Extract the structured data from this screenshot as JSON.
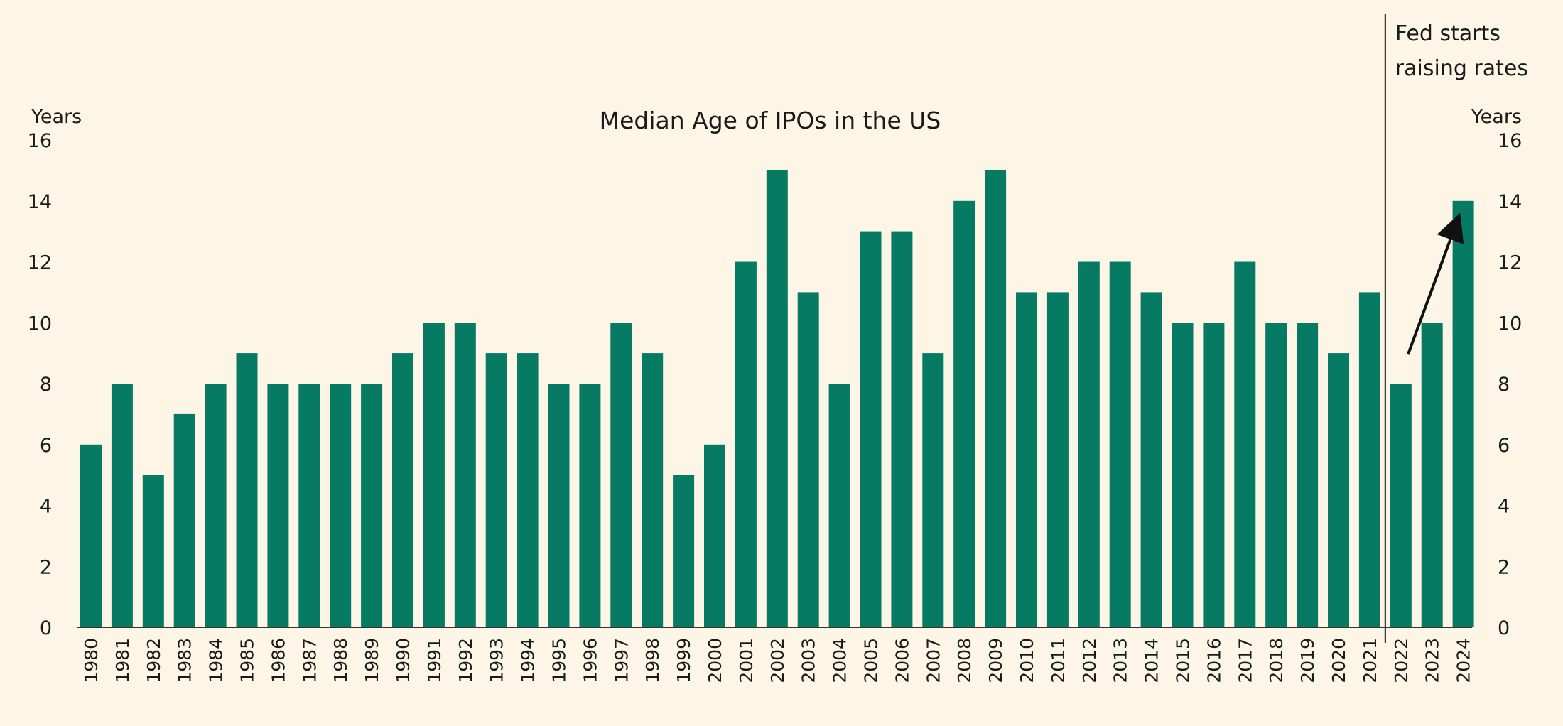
{
  "chart_data": {
    "type": "bar",
    "title": "Median Age of IPOs in the US",
    "ylabel_left": "Years",
    "ylabel_right": "Years",
    "ylim": [
      0,
      16
    ],
    "yticks": [
      0,
      2,
      4,
      6,
      8,
      10,
      12,
      14,
      16
    ],
    "grid": false,
    "categories": [
      "1980",
      "1981",
      "1982",
      "1983",
      "1984",
      "1985",
      "1986",
      "1987",
      "1988",
      "1989",
      "1990",
      "1991",
      "1992",
      "1993",
      "1994",
      "1995",
      "1996",
      "1997",
      "1998",
      "1999",
      "2000",
      "2001",
      "2002",
      "2003",
      "2004",
      "2005",
      "2006",
      "2007",
      "2008",
      "2009",
      "2010",
      "2011",
      "2012",
      "2013",
      "2014",
      "2015",
      "2016",
      "2017",
      "2018",
      "2019",
      "2020",
      "2021",
      "2022",
      "2023",
      "2024"
    ],
    "values": [
      6,
      8,
      5,
      7,
      8,
      9,
      8,
      8,
      8,
      8,
      9,
      10,
      10,
      9,
      9,
      8,
      8,
      10,
      9,
      5,
      6,
      12,
      15,
      11,
      8,
      13,
      13,
      9,
      14,
      15,
      11,
      11,
      12,
      12,
      11,
      10,
      10,
      12,
      10,
      10,
      9,
      11,
      8,
      10,
      14
    ],
    "bar_color": "#067a63",
    "annotations": [
      {
        "type": "vertical-line",
        "between": [
          "2021",
          "2022"
        ],
        "text_lines": [
          "Fed starts",
          "raising rates"
        ]
      },
      {
        "type": "arrow",
        "from": {
          "x": "2022",
          "y": 9
        },
        "to": {
          "x": "2023",
          "y": 13.4
        }
      }
    ]
  }
}
